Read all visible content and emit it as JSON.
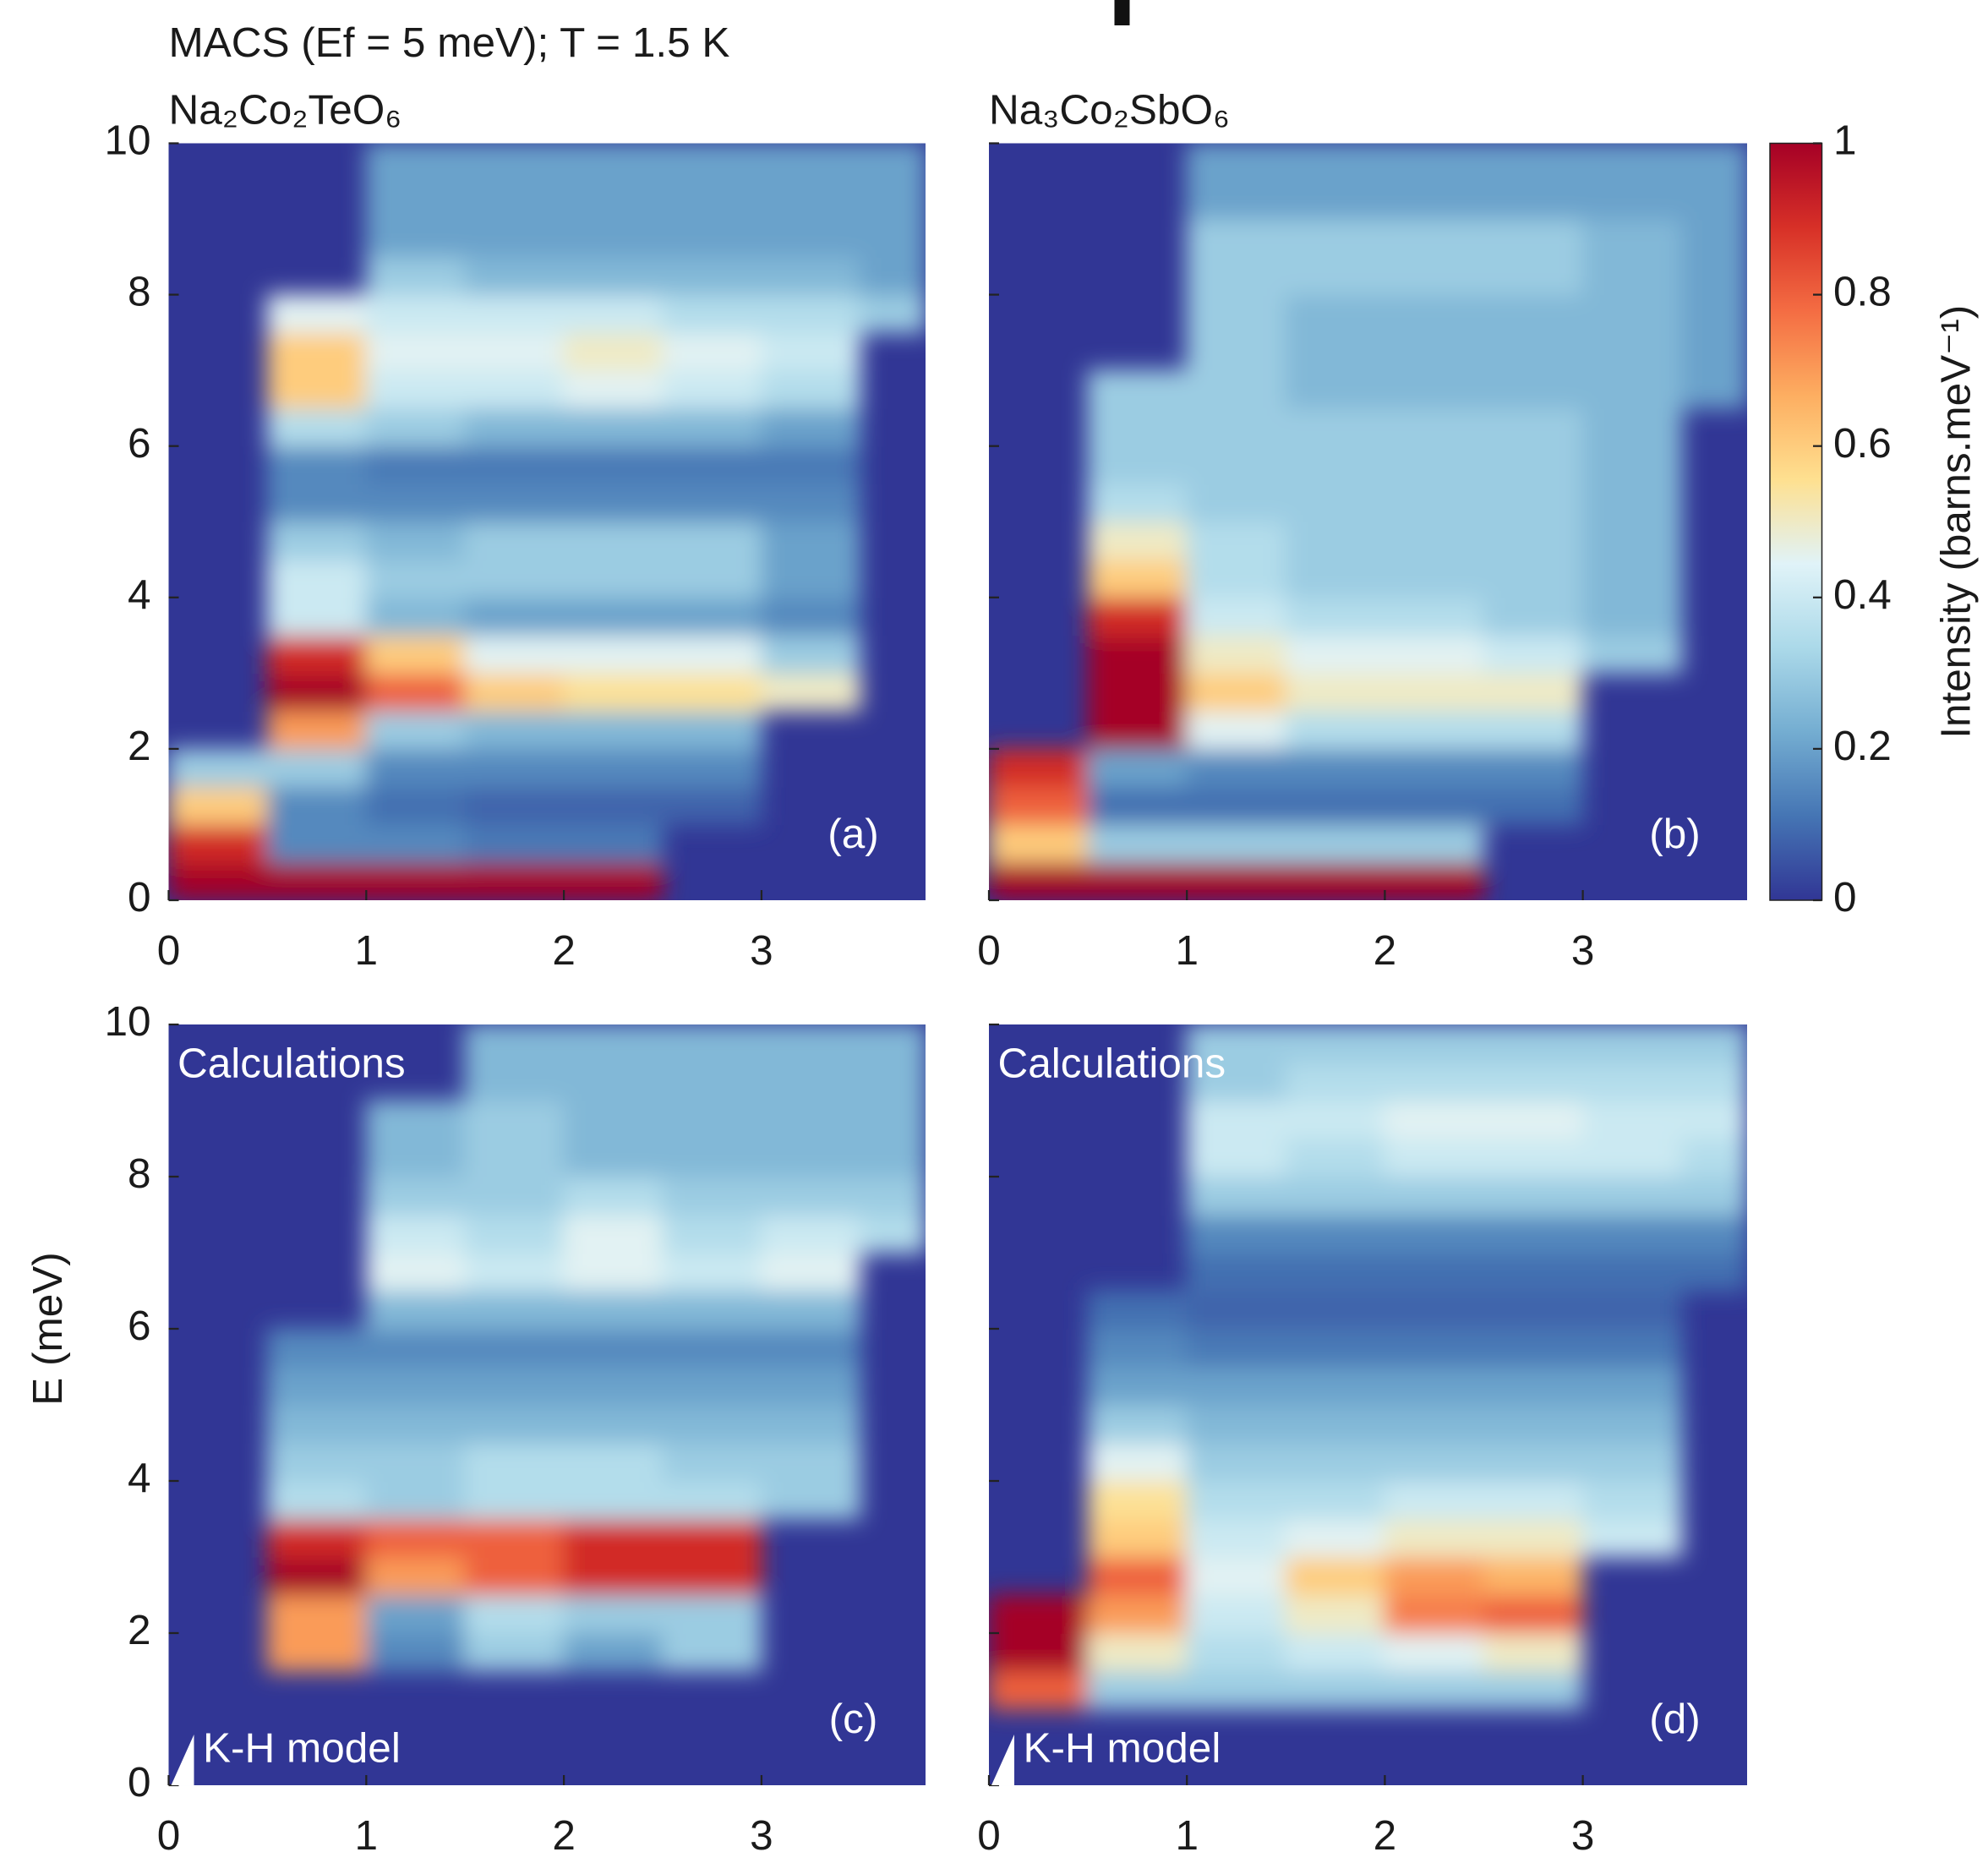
{
  "suptitle": "MACS (Ef = 5 meV); T = 1.5 K",
  "colorbar": {
    "label": "Intensity (barns.meV⁻¹)",
    "lim": [
      0,
      1
    ],
    "ticks": [
      0,
      0.2,
      0.4,
      0.6,
      0.8,
      1
    ],
    "colors": [
      "#313695",
      "#4575b4",
      "#74add1",
      "#abd9e9",
      "#e0f3f8",
      "#fee090",
      "#fdae61",
      "#f46d43",
      "#d73027",
      "#a50026"
    ]
  },
  "chart_data": [
    {
      "type": "heatmap",
      "title": "Na₂Co₂TeO₆",
      "label": "(a)",
      "x": [
        0,
        0.5,
        1,
        1.5,
        2,
        2.5,
        3,
        3.5,
        3.83
      ],
      "y": [
        0,
        0.5,
        1,
        1.5,
        2,
        2.5,
        3,
        3.5,
        4,
        4.5,
        5,
        5.5,
        6,
        6.5,
        7,
        7.5,
        8,
        8.5,
        9,
        9.5,
        10
      ],
      "xlim": [
        0,
        3.83
      ],
      "ylim": [
        0,
        10
      ],
      "xticks": [
        0,
        1,
        2,
        3
      ],
      "yticks": [
        0,
        2,
        4,
        6,
        8,
        10
      ],
      "values": [
        [
          1,
          1,
          1,
          1,
          1,
          null,
          null,
          null
        ],
        [
          0.9,
          0.15,
          0.15,
          0.12,
          0.12,
          null,
          null,
          null
        ],
        [
          0.6,
          0.15,
          0.1,
          0.08,
          0.08,
          0.08,
          null,
          null
        ],
        [
          0.3,
          0.3,
          0.15,
          0.15,
          0.15,
          0.15,
          null,
          null
        ],
        [
          null,
          0.7,
          0.3,
          0.25,
          0.25,
          0.25,
          null,
          null
        ],
        [
          null,
          1,
          0.8,
          0.6,
          0.55,
          0.55,
          0.5,
          null
        ],
        [
          null,
          0.9,
          0.6,
          0.45,
          0.45,
          0.45,
          0.3,
          null
        ],
        [
          null,
          0.4,
          0.25,
          0.2,
          0.2,
          0.2,
          0.15,
          null
        ],
        [
          null,
          0.4,
          0.3,
          0.3,
          0.3,
          0.3,
          0.2,
          null
        ],
        [
          null,
          0.3,
          0.25,
          0.3,
          0.3,
          0.3,
          0.2,
          null
        ],
        [
          null,
          0.15,
          0.15,
          0.15,
          0.15,
          0.15,
          0.15,
          null
        ],
        [
          null,
          0.15,
          0.12,
          0.12,
          0.12,
          0.12,
          0.12,
          null
        ],
        [
          null,
          0.35,
          0.3,
          0.25,
          0.25,
          0.25,
          0.2,
          null
        ],
        [
          null,
          0.6,
          0.4,
          0.4,
          0.45,
          0.4,
          0.35,
          null
        ],
        [
          null,
          0.6,
          0.45,
          0.45,
          0.5,
          0.45,
          0.4,
          null
        ],
        [
          null,
          0.45,
          0.4,
          0.4,
          0.4,
          0.35,
          0.35,
          0.3
        ],
        [
          null,
          null,
          0.3,
          0.25,
          0.25,
          0.25,
          0.25,
          0.2
        ],
        [
          null,
          null,
          0.2,
          0.2,
          0.2,
          0.2,
          0.2,
          0.2
        ],
        [
          null,
          null,
          0.2,
          0.2,
          0.2,
          0.2,
          0.2,
          0.2
        ],
        [
          null,
          null,
          0.2,
          0.2,
          0.2,
          0.2,
          0.2,
          0.2
        ]
      ]
    },
    {
      "type": "heatmap",
      "title": "Na₃Co₂SbO₆",
      "label": "(b)",
      "x": [
        0,
        0.5,
        1,
        1.5,
        2,
        2.5,
        3,
        3.5,
        3.83
      ],
      "y": [
        0,
        0.5,
        1,
        1.5,
        2,
        2.5,
        3,
        3.5,
        4,
        4.5,
        5,
        5.5,
        6,
        6.5,
        7,
        7.5,
        8,
        8.5,
        9,
        9.5,
        10
      ],
      "xlim": [
        0,
        3.83
      ],
      "ylim": [
        0,
        10
      ],
      "xticks": [
        0,
        1,
        2,
        3
      ],
      "yticks": [
        0,
        2,
        4,
        6,
        8,
        10
      ],
      "values": [
        [
          1,
          1,
          1,
          1,
          1,
          null,
          null,
          null
        ],
        [
          0.6,
          0.3,
          0.3,
          0.3,
          0.3,
          null,
          null,
          null
        ],
        [
          0.8,
          0.1,
          0.1,
          0.1,
          0.1,
          0.1,
          null,
          null
        ],
        [
          0.9,
          0.2,
          0.15,
          0.15,
          0.15,
          0.15,
          null,
          null
        ],
        [
          null,
          1,
          0.45,
          0.35,
          0.35,
          0.35,
          null,
          null
        ],
        [
          null,
          1,
          0.6,
          0.5,
          0.5,
          0.5,
          null,
          null
        ],
        [
          null,
          1,
          0.5,
          0.45,
          0.45,
          0.4,
          0.3,
          null
        ],
        [
          null,
          0.9,
          0.4,
          0.35,
          0.35,
          0.3,
          0.25,
          null
        ],
        [
          null,
          0.6,
          0.35,
          0.3,
          0.3,
          0.3,
          0.25,
          null
        ],
        [
          null,
          0.5,
          0.35,
          0.3,
          0.3,
          0.3,
          0.25,
          null
        ],
        [
          null,
          0.35,
          0.3,
          0.3,
          0.3,
          0.3,
          0.25,
          null
        ],
        [
          null,
          0.3,
          0.3,
          0.3,
          0.3,
          0.3,
          0.25,
          null
        ],
        [
          null,
          0.3,
          0.3,
          0.3,
          0.3,
          0.3,
          0.25,
          null
        ],
        [
          null,
          0.3,
          0.3,
          0.25,
          0.25,
          0.25,
          0.25,
          0.2
        ],
        [
          null,
          null,
          0.3,
          0.25,
          0.25,
          0.25,
          0.25,
          0.2
        ],
        [
          null,
          null,
          0.3,
          0.25,
          0.25,
          0.25,
          0.25,
          0.2
        ],
        [
          null,
          null,
          0.3,
          0.3,
          0.3,
          0.3,
          0.25,
          0.2
        ],
        [
          null,
          null,
          0.3,
          0.3,
          0.3,
          0.3,
          0.25,
          0.2
        ],
        [
          null,
          null,
          0.2,
          0.2,
          0.2,
          0.2,
          0.2,
          0.2
        ],
        [
          null,
          null,
          0.2,
          0.2,
          0.2,
          0.2,
          0.2,
          0.2
        ]
      ]
    },
    {
      "type": "heatmap",
      "label": "(c)",
      "note": "Calculations",
      "model": "K-H model",
      "ylabel": "E (meV)",
      "x": [
        0,
        0.5,
        1,
        1.5,
        2,
        2.5,
        3,
        3.5,
        3.83
      ],
      "y": [
        0,
        0.5,
        1,
        1.5,
        2,
        2.5,
        3,
        3.5,
        4,
        4.5,
        5,
        5.5,
        6,
        6.5,
        7,
        7.5,
        8,
        8.5,
        9,
        9.5,
        10
      ],
      "xlim": [
        0,
        3.83
      ],
      "ylim": [
        0,
        10
      ],
      "xticks": [
        0,
        1,
        2,
        3
      ],
      "yticks": [
        0,
        2,
        4,
        6,
        8,
        10
      ],
      "values": [
        [
          null,
          null,
          null,
          null,
          null,
          null,
          null,
          null
        ],
        [
          null,
          null,
          null,
          null,
          null,
          null,
          null,
          null
        ],
        [
          null,
          null,
          null,
          null,
          null,
          null,
          null,
          null
        ],
        [
          null,
          0.7,
          0.15,
          0.3,
          0.2,
          0.3,
          null,
          null
        ],
        [
          null,
          0.7,
          0.2,
          0.35,
          0.3,
          0.3,
          null,
          null
        ],
        [
          null,
          1,
          0.7,
          0.8,
          0.9,
          0.9,
          null,
          null
        ],
        [
          null,
          0.9,
          0.8,
          0.8,
          0.9,
          0.9,
          null,
          null
        ],
        [
          null,
          0.35,
          0.3,
          0.35,
          0.35,
          0.35,
          0.3,
          null
        ],
        [
          null,
          0.3,
          0.3,
          0.35,
          0.35,
          0.3,
          0.3,
          null
        ],
        [
          null,
          0.25,
          0.25,
          0.25,
          0.25,
          0.25,
          0.25,
          null
        ],
        [
          null,
          0.2,
          0.2,
          0.2,
          0.2,
          0.2,
          0.2,
          null
        ],
        [
          null,
          0.15,
          0.15,
          0.15,
          0.15,
          0.15,
          0.15,
          null
        ],
        [
          null,
          null,
          0.25,
          0.25,
          0.25,
          0.25,
          0.25,
          null
        ],
        [
          null,
          null,
          0.45,
          0.4,
          0.45,
          0.4,
          0.45,
          null
        ],
        [
          null,
          null,
          0.4,
          0.35,
          0.45,
          0.35,
          0.4,
          0.35
        ],
        [
          null,
          null,
          0.3,
          0.3,
          0.35,
          0.3,
          0.3,
          0.3
        ],
        [
          null,
          null,
          0.25,
          0.3,
          0.25,
          0.25,
          0.25,
          0.25
        ],
        [
          null,
          null,
          0.25,
          0.3,
          0.25,
          0.25,
          0.25,
          0.25
        ],
        [
          null,
          null,
          null,
          0.25,
          0.25,
          0.25,
          0.25,
          0.25
        ],
        [
          null,
          null,
          null,
          0.25,
          0.25,
          0.25,
          0.25,
          0.25
        ]
      ]
    },
    {
      "type": "heatmap",
      "label": "(d)",
      "note": "Calculations",
      "model": "K-H model",
      "x": [
        0,
        0.5,
        1,
        1.5,
        2,
        2.5,
        3,
        3.5,
        3.83
      ],
      "y": [
        0,
        0.5,
        1,
        1.5,
        2,
        2.5,
        3,
        3.5,
        4,
        4.5,
        5,
        5.5,
        6,
        6.5,
        7,
        7.5,
        8,
        8.5,
        9,
        9.5,
        10
      ],
      "xlim": [
        0,
        3.83
      ],
      "ylim": [
        0,
        10
      ],
      "xticks": [
        0,
        1,
        2,
        3
      ],
      "yticks": [
        0,
        2,
        4,
        6,
        8,
        10
      ],
      "values": [
        [
          null,
          null,
          null,
          null,
          null,
          null,
          null,
          null
        ],
        [
          null,
          null,
          null,
          null,
          null,
          null,
          null,
          null
        ],
        [
          0.8,
          0.3,
          0.3,
          0.3,
          0.3,
          0.3,
          null,
          null
        ],
        [
          1,
          0.5,
          0.35,
          0.4,
          0.45,
          0.5,
          null,
          null
        ],
        [
          1,
          0.7,
          0.4,
          0.5,
          0.75,
          0.8,
          null,
          null
        ],
        [
          null,
          0.8,
          0.45,
          0.6,
          0.7,
          0.65,
          null,
          null
        ],
        [
          null,
          0.6,
          0.4,
          0.45,
          0.5,
          0.5,
          0.4,
          null
        ],
        [
          null,
          0.55,
          0.35,
          0.35,
          0.4,
          0.4,
          0.35,
          null
        ],
        [
          null,
          0.45,
          0.3,
          0.3,
          0.3,
          0.3,
          0.3,
          null
        ],
        [
          null,
          0.3,
          0.25,
          0.25,
          0.25,
          0.25,
          0.25,
          null
        ],
        [
          null,
          0.2,
          0.2,
          0.2,
          0.2,
          0.2,
          0.2,
          null
        ],
        [
          null,
          0.15,
          0.12,
          0.12,
          0.12,
          0.12,
          0.12,
          null
        ],
        [
          null,
          0.1,
          0.08,
          0.08,
          0.08,
          0.08,
          0.08,
          null
        ],
        [
          null,
          null,
          0.1,
          0.1,
          0.1,
          0.1,
          0.1,
          0.1
        ],
        [
          null,
          null,
          0.15,
          0.15,
          0.15,
          0.15,
          0.15,
          0.15
        ],
        [
          null,
          null,
          0.3,
          0.3,
          0.3,
          0.3,
          0.3,
          0.3
        ],
        [
          null,
          null,
          0.4,
          0.35,
          0.4,
          0.4,
          0.4,
          0.35
        ],
        [
          null,
          null,
          0.4,
          0.4,
          0.45,
          0.45,
          0.4,
          0.4
        ],
        [
          null,
          null,
          0.3,
          0.35,
          0.35,
          0.35,
          0.35,
          0.35
        ],
        [
          null,
          null,
          0.3,
          0.3,
          0.3,
          0.3,
          0.3,
          0.3
        ]
      ]
    }
  ]
}
